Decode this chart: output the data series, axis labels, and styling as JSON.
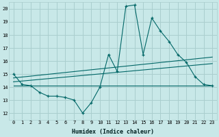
{
  "xlabel": "Humidex (Indice chaleur)",
  "bg_color": "#c8e8e8",
  "grid_color": "#aacece",
  "line_color": "#006666",
  "xlim": [
    -0.5,
    23.5
  ],
  "ylim": [
    11.5,
    20.5
  ],
  "xticks": [
    0,
    1,
    2,
    3,
    4,
    5,
    6,
    7,
    8,
    9,
    10,
    11,
    12,
    13,
    14,
    15,
    16,
    17,
    18,
    19,
    20,
    21,
    22,
    23
  ],
  "yticks": [
    12,
    13,
    14,
    15,
    16,
    17,
    18,
    19,
    20
  ],
  "main_x": [
    0,
    1,
    2,
    3,
    4,
    5,
    6,
    7,
    8,
    9,
    10,
    11,
    12,
    13,
    14,
    15,
    16,
    17,
    18,
    19,
    20,
    21,
    22,
    23
  ],
  "main_y": [
    15.0,
    14.2,
    14.1,
    13.6,
    13.3,
    13.3,
    13.2,
    13.0,
    12.0,
    12.8,
    14.0,
    16.5,
    15.2,
    20.2,
    20.3,
    16.5,
    19.3,
    18.3,
    17.5,
    16.5,
    15.9,
    14.8,
    14.2,
    14.1
  ],
  "trend1_x": [
    0,
    23
  ],
  "trend1_y": [
    14.7,
    16.3
  ],
  "trend2_x": [
    0,
    23
  ],
  "trend2_y": [
    14.4,
    15.8
  ],
  "trend3_x": [
    0,
    23
  ],
  "trend3_y": [
    14.1,
    14.1
  ]
}
